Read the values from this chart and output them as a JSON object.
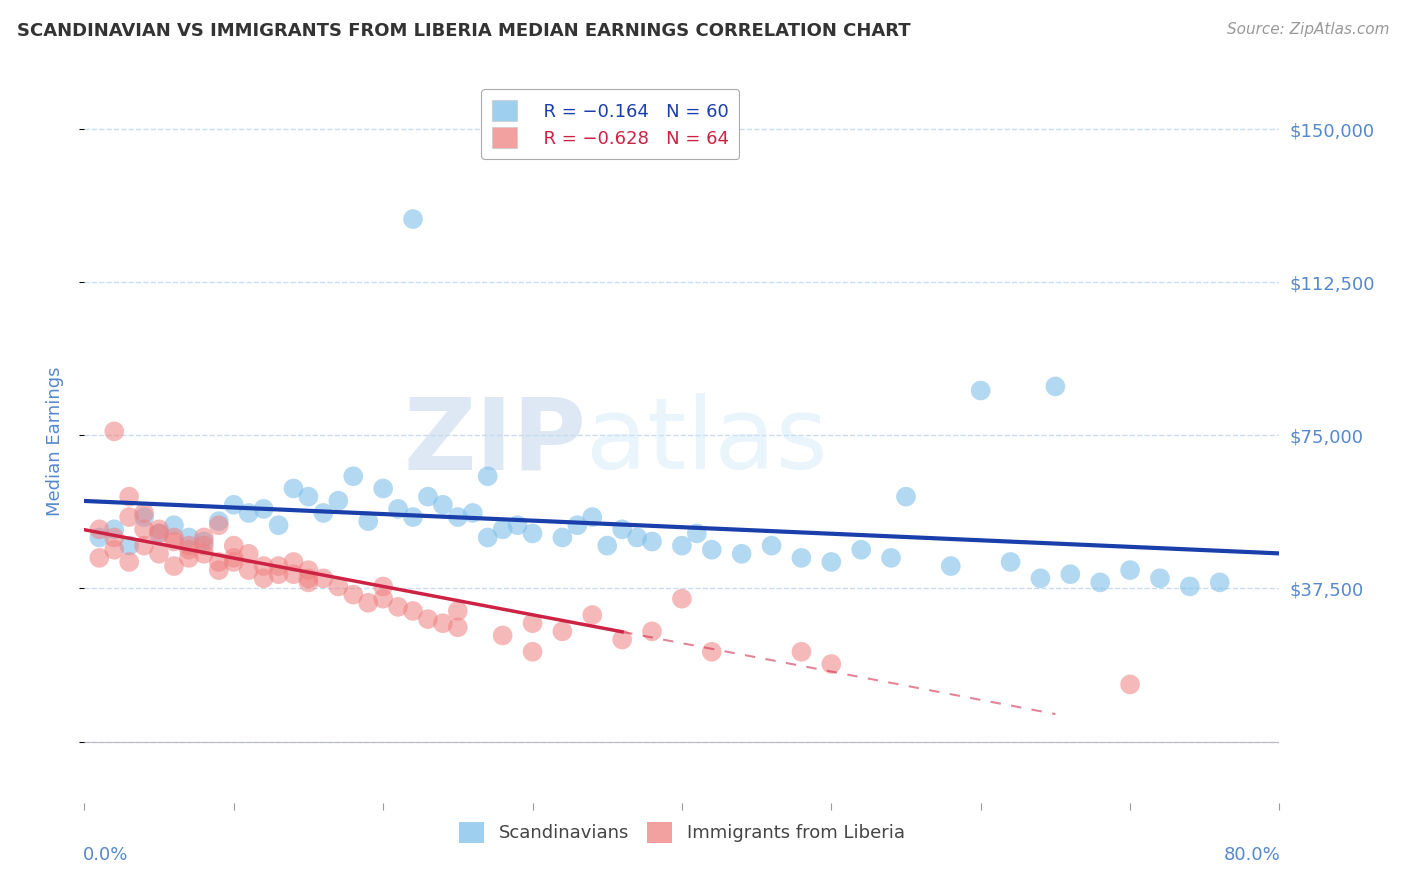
{
  "title": "SCANDINAVIAN VS IMMIGRANTS FROM LIBERIA MEDIAN EARNINGS CORRELATION CHART",
  "source": "Source: ZipAtlas.com",
  "ylabel": "Median Earnings",
  "xlim": [
    0.0,
    0.8
  ],
  "ylim": [
    -15000,
    162000
  ],
  "yticks": [
    0,
    37500,
    75000,
    112500,
    150000
  ],
  "xticks": [
    0.0,
    0.1,
    0.2,
    0.3,
    0.4,
    0.5,
    0.6,
    0.7,
    0.8
  ],
  "ytick_labels": [
    "",
    "$37,500",
    "$75,000",
    "$112,500",
    "$150,000"
  ],
  "blue_color": "#7fbfea",
  "pink_color": "#f08080",
  "blue_line_color": "#1a3faa",
  "pink_line_color": "#cc2244",
  "axis_color": "#5588cc",
  "grid_color": "#c8ddf0",
  "background_color": "#ffffff",
  "watermark_zip": "ZIP",
  "watermark_atlas": "atlas",
  "legend_R_blue": "R = −0.164",
  "legend_N_blue": "N = 60",
  "legend_R_pink": "R = −0.628",
  "legend_N_pink": "N = 64",
  "legend_label_blue": "Scandinavians",
  "legend_label_pink": "Immigrants from Liberia",
  "blue_scatter_x": [
    0.01,
    0.02,
    0.03,
    0.04,
    0.05,
    0.06,
    0.07,
    0.08,
    0.09,
    0.1,
    0.11,
    0.12,
    0.13,
    0.14,
    0.15,
    0.16,
    0.17,
    0.18,
    0.19,
    0.2,
    0.21,
    0.22,
    0.23,
    0.24,
    0.25,
    0.26,
    0.27,
    0.28,
    0.29,
    0.3,
    0.32,
    0.33,
    0.34,
    0.35,
    0.36,
    0.37,
    0.38,
    0.4,
    0.41,
    0.42,
    0.44,
    0.46,
    0.48,
    0.5,
    0.52,
    0.54,
    0.55,
    0.58,
    0.6,
    0.62,
    0.64,
    0.65,
    0.66,
    0.68,
    0.7,
    0.72,
    0.74,
    0.76,
    0.22,
    0.27
  ],
  "blue_scatter_y": [
    50000,
    52000,
    48000,
    55000,
    51000,
    53000,
    50000,
    49000,
    54000,
    58000,
    56000,
    57000,
    53000,
    62000,
    60000,
    56000,
    59000,
    65000,
    54000,
    62000,
    57000,
    55000,
    60000,
    58000,
    55000,
    56000,
    50000,
    52000,
    53000,
    51000,
    50000,
    53000,
    55000,
    48000,
    52000,
    50000,
    49000,
    48000,
    51000,
    47000,
    46000,
    48000,
    45000,
    44000,
    47000,
    45000,
    60000,
    43000,
    86000,
    44000,
    40000,
    87000,
    41000,
    39000,
    42000,
    40000,
    38000,
    39000,
    128000,
    65000
  ],
  "pink_scatter_x": [
    0.01,
    0.02,
    0.03,
    0.04,
    0.05,
    0.06,
    0.07,
    0.08,
    0.09,
    0.1,
    0.01,
    0.02,
    0.03,
    0.04,
    0.05,
    0.06,
    0.07,
    0.08,
    0.09,
    0.1,
    0.11,
    0.12,
    0.13,
    0.14,
    0.15,
    0.02,
    0.03,
    0.04,
    0.05,
    0.06,
    0.07,
    0.08,
    0.09,
    0.1,
    0.11,
    0.12,
    0.13,
    0.14,
    0.15,
    0.16,
    0.17,
    0.18,
    0.19,
    0.2,
    0.21,
    0.22,
    0.23,
    0.24,
    0.25,
    0.28,
    0.3,
    0.32,
    0.34,
    0.36,
    0.38,
    0.4,
    0.42,
    0.48,
    0.5,
    0.15,
    0.2,
    0.25,
    0.3,
    0.7
  ],
  "pink_scatter_y": [
    52000,
    50000,
    55000,
    48000,
    51000,
    49000,
    47000,
    50000,
    53000,
    48000,
    45000,
    47000,
    44000,
    52000,
    46000,
    43000,
    45000,
    48000,
    42000,
    44000,
    46000,
    43000,
    41000,
    44000,
    42000,
    76000,
    60000,
    56000,
    52000,
    50000,
    48000,
    46000,
    44000,
    45000,
    42000,
    40000,
    43000,
    41000,
    39000,
    40000,
    38000,
    36000,
    34000,
    35000,
    33000,
    32000,
    30000,
    29000,
    28000,
    26000,
    29000,
    27000,
    31000,
    25000,
    27000,
    35000,
    22000,
    22000,
    19000,
    40000,
    38000,
    32000,
    22000,
    14000
  ]
}
